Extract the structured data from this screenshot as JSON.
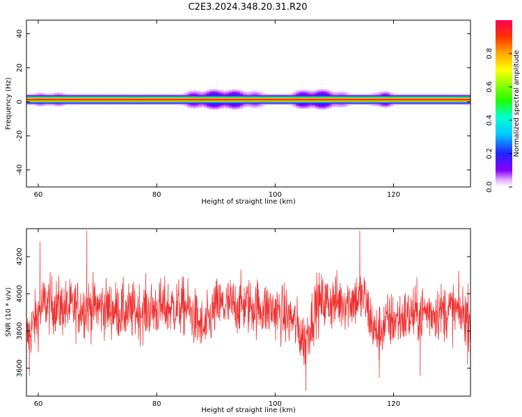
{
  "title": "C2E3.2024.348.20.31.R20",
  "chart_data": [
    {
      "type": "heatmap",
      "xlabel": "Height of straight line (km)",
      "ylabel": "Frequency (Hz)",
      "xlim": [
        58,
        133
      ],
      "ylim": [
        -50,
        48
      ],
      "x_ticks": [
        60,
        80,
        100,
        120
      ],
      "y_ticks": [
        -40,
        -20,
        0,
        20,
        40
      ],
      "x_tick_labels": [
        "60",
        "80",
        "100",
        "120"
      ],
      "y_tick_labels": [
        "-40",
        "-20",
        "0",
        "20",
        "40"
      ],
      "colorbar": {
        "label": "Normalized spectral amplitude",
        "range": [
          0,
          1
        ],
        "ticks": [
          0.0,
          0.2,
          0.4,
          0.6,
          0.8
        ],
        "tick_labels": [
          "0.0",
          "0.2",
          "0.4",
          "0.6",
          "0.8"
        ]
      },
      "band": {
        "center_hz": 1.5,
        "halfwidth_hz": 1.8,
        "peak_amplitude": 0.95,
        "spread_regions": [
          {
            "x_from": 84,
            "x_to": 98,
            "halfwidth_hz": 4,
            "peak_amplitude": 0.3
          },
          {
            "x_from": 102,
            "x_to": 112,
            "halfwidth_hz": 4,
            "peak_amplitude": 0.3
          },
          {
            "x_from": 116,
            "x_to": 120,
            "halfwidth_hz": 3.5,
            "peak_amplitude": 0.25
          },
          {
            "x_from": 58,
            "x_to": 66,
            "halfwidth_hz": 3,
            "peak_amplitude": 0.2
          }
        ]
      }
    },
    {
      "type": "line",
      "xlabel": "Height of straight line (km)",
      "ylabel": "SNR (10 * v/v)",
      "xlim": [
        58,
        133
      ],
      "ylim": [
        3450,
        4350
      ],
      "x_ticks": [
        60,
        80,
        100,
        120
      ],
      "y_ticks": [
        3600,
        3800,
        4000,
        4200
      ],
      "x_tick_labels": [
        "60",
        "80",
        "100",
        "120"
      ],
      "y_tick_labels": [
        "3600",
        "3800",
        "4000",
        "4200"
      ],
      "color": "#f03030",
      "sample_count": 1500,
      "mean_profile": [
        {
          "x": 58,
          "y": 3760
        },
        {
          "x": 61,
          "y": 3950
        },
        {
          "x": 65,
          "y": 3920
        },
        {
          "x": 70,
          "y": 3930
        },
        {
          "x": 75,
          "y": 3900
        },
        {
          "x": 80,
          "y": 3920
        },
        {
          "x": 85,
          "y": 3930
        },
        {
          "x": 88,
          "y": 3800
        },
        {
          "x": 90,
          "y": 3930
        },
        {
          "x": 95,
          "y": 3940
        },
        {
          "x": 100,
          "y": 3910
        },
        {
          "x": 103,
          "y": 3860
        },
        {
          "x": 105,
          "y": 3740
        },
        {
          "x": 107,
          "y": 3950
        },
        {
          "x": 112,
          "y": 3960
        },
        {
          "x": 115,
          "y": 3980
        },
        {
          "x": 117,
          "y": 3780
        },
        {
          "x": 119,
          "y": 3850
        },
        {
          "x": 125,
          "y": 3900
        },
        {
          "x": 130,
          "y": 3910
        },
        {
          "x": 133,
          "y": 3880
        }
      ],
      "noise_amplitude": 110,
      "notable_points": [
        {
          "x": 58.5,
          "y": 3560
        },
        {
          "x": 60.3,
          "y": 4280
        },
        {
          "x": 68.2,
          "y": 4340
        },
        {
          "x": 105.2,
          "y": 3480
        },
        {
          "x": 114.3,
          "y": 4340
        },
        {
          "x": 117.6,
          "y": 3550
        },
        {
          "x": 124.5,
          "y": 3560
        },
        {
          "x": 132.5,
          "y": 3620
        }
      ]
    }
  ]
}
